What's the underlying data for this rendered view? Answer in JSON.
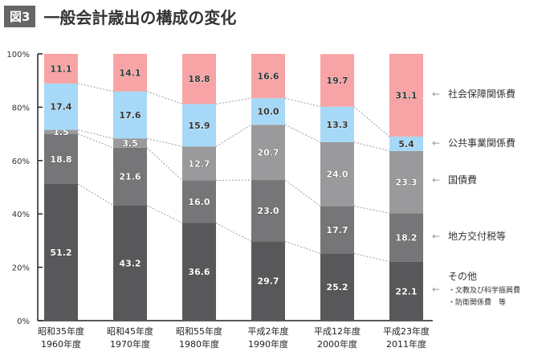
{
  "header": {
    "badge": "図3",
    "title": "一般会計歳出の構成の変化"
  },
  "chart_data": {
    "type": "bar",
    "stacked": true,
    "title": "一般会計歳出の構成の変化",
    "categories": [
      [
        "昭和35年度",
        "1960年度"
      ],
      [
        "昭和45年度",
        "1970年度"
      ],
      [
        "昭和55年度",
        "1980年度"
      ],
      [
        "平成2年度",
        "1990年度"
      ],
      [
        "平成12年度",
        "2000年度"
      ],
      [
        "平成23年度",
        "2011年度"
      ]
    ],
    "ylim": [
      0,
      100
    ],
    "yticks": [
      "0%",
      "20%",
      "40%",
      "60%",
      "80%",
      "100%"
    ],
    "series": [
      {
        "name": "その他",
        "sub": [
          "・文教及び科学振興費",
          "・防衛関係費　等"
        ],
        "color": "#58585a",
        "text_color": "#ffffff",
        "values": [
          51.2,
          43.2,
          36.6,
          29.7,
          25.2,
          22.1
        ]
      },
      {
        "name": "地方交付税等",
        "color": "#767678",
        "text_color": "#ffffff",
        "values": [
          18.8,
          21.6,
          16.0,
          23.0,
          17.7,
          18.2
        ]
      },
      {
        "name": "国債費",
        "color": "#9a9a9c",
        "text_color": "#ffffff",
        "values": [
          1.5,
          3.5,
          12.7,
          20.7,
          24.0,
          23.3
        ]
      },
      {
        "name": "公共事業関係費",
        "color": "#a6d9f7",
        "text_color": "#333333",
        "values": [
          17.4,
          17.6,
          15.9,
          10.0,
          13.3,
          5.4
        ]
      },
      {
        "name": "社会保障関係費",
        "color": "#f8a3a5",
        "text_color": "#333333",
        "values": [
          11.1,
          14.1,
          18.8,
          16.6,
          19.7,
          31.1
        ]
      }
    ],
    "legend_arrow": "←",
    "legend": "right",
    "connector_lines": "dashed"
  }
}
